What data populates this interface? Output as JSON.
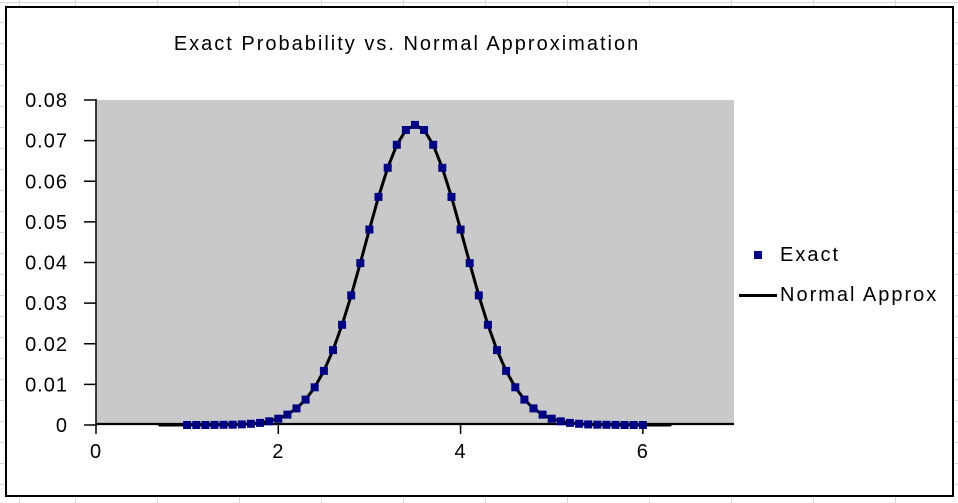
{
  "chart_data": {
    "type": "line",
    "title": "Exact Probability vs. Normal Approximation",
    "xlabel": "",
    "ylabel": "",
    "grid": "off",
    "legend_position": "right",
    "plot_background_color": "#c9c9ca",
    "x_axis": {
      "min": 0,
      "max": 7,
      "tick_values": [
        0,
        2,
        4,
        6
      ],
      "tick_labels": [
        "0",
        "2",
        "4",
        "6"
      ]
    },
    "y_axis": {
      "min": 0,
      "max": 0.08,
      "tick_step": 0.01,
      "tick_labels": [
        "0",
        "0.01",
        "0.02",
        "0.03",
        "0.04",
        "0.05",
        "0.06",
        "0.07",
        "0.08"
      ]
    },
    "series": [
      {
        "name": "Exact",
        "type": "scatter",
        "marker": "square",
        "color": "#000082",
        "x_start": 1.0,
        "x_step": 0.1,
        "values": [
          0.0,
          0.0,
          1e-05,
          2e-05,
          4e-05,
          8e-05,
          0.00015,
          0.00029,
          0.00052,
          0.00092,
          0.00156,
          0.00257,
          0.00408,
          0.00625,
          0.00928,
          0.01331,
          0.01843,
          0.02466,
          0.03189,
          0.03985,
          0.04812,
          0.05615,
          0.06331,
          0.06897,
          0.07261,
          0.07387,
          0.07261,
          0.06897,
          0.06331,
          0.05615,
          0.04812,
          0.03985,
          0.03189,
          0.02466,
          0.01843,
          0.01331,
          0.00928,
          0.00625,
          0.00408,
          0.00257,
          0.00156,
          0.00092,
          0.00052,
          0.00029,
          0.00015,
          8e-05,
          4e-05,
          2e-05,
          1e-05,
          0.0,
          0.0
        ]
      },
      {
        "name": "Normal Approx",
        "type": "line",
        "color": "#000000",
        "x_start": 0.7,
        "x_step": 0.1,
        "values": [
          0.0,
          0.0,
          0.0,
          0.0,
          0.0,
          1e-05,
          2e-05,
          4e-05,
          8e-05,
          0.00015,
          0.00029,
          0.00052,
          0.00092,
          0.00156,
          0.00257,
          0.00408,
          0.00625,
          0.00928,
          0.01331,
          0.01843,
          0.02466,
          0.03189,
          0.03985,
          0.04812,
          0.05615,
          0.06331,
          0.06897,
          0.07261,
          0.07387,
          0.07261,
          0.06897,
          0.06331,
          0.05615,
          0.04812,
          0.03985,
          0.03189,
          0.02466,
          0.01843,
          0.01331,
          0.00928,
          0.00625,
          0.00408,
          0.00257,
          0.00156,
          0.00092,
          0.00052,
          0.00029,
          0.00015,
          8e-05,
          4e-05,
          2e-05,
          1e-05,
          0.0,
          0.0,
          0.0,
          0.0,
          0.0
        ]
      }
    ]
  }
}
